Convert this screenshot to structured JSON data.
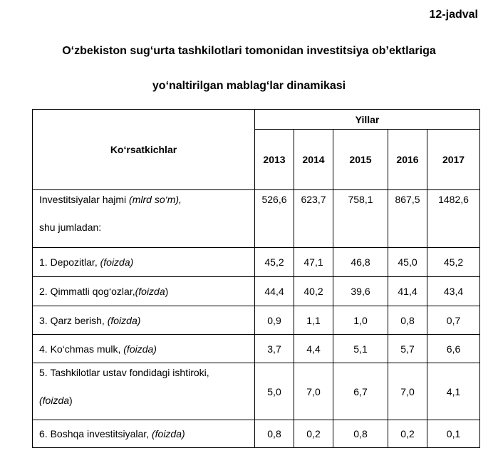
{
  "table_no": "12-jadval",
  "title_line1": "O‘zbekiston sug‘urta tashkilotlari tomonidan investitsiya ob’ektlariga",
  "title_line2": "yo‘naltirilgan mablag‘lar dinamikasi",
  "header": {
    "indicators": "Ko‘rsatkichlar",
    "years_group": "Yillar",
    "years": [
      "2013",
      "2014",
      "2015",
      "2016",
      "2017"
    ]
  },
  "rows": [
    {
      "label": "Investitsiyalar hajmi",
      "unit": "(mlrd so‘m),",
      "sub": "shu jumladan:",
      "values": [
        "526,6",
        "623,7",
        "758,1",
        "867,5",
        "1482,6"
      ]
    },
    {
      "label": "1.  Depozitlar,",
      "unit": "(foizda)",
      "values": [
        "45,2",
        "47,1",
        "46,8",
        "45,0",
        "45,2"
      ]
    },
    {
      "label": "2.  Qimmatli qog‘ozlar,",
      "unit": "(foizda",
      "unit_close": ")",
      "values": [
        "44,4",
        "40,2",
        "39,6",
        "41,4",
        "43,4"
      ]
    },
    {
      "label": "3.  Qarz berish,",
      "unit": "(foizda)",
      "values": [
        "0,9",
        "1,1",
        "1,0",
        "0,8",
        "0,7"
      ]
    },
    {
      "label": "4.  Ko‘chmas mulk,",
      "unit": "(foizda)",
      "values": [
        "3,7",
        "4,4",
        "5,1",
        "5,7",
        "6,6"
      ]
    },
    {
      "label": "5.  Tashkilotlar ustav fondidagi ishtiroki,",
      "unit": "(foizda",
      "unit_close": ")",
      "values": [
        "5,0",
        "7,0",
        "6,7",
        "7,0",
        "4,1"
      ]
    },
    {
      "label": "6.  Boshqa investitsiyalar,",
      "unit": "(foizda)",
      "values": [
        "0,8",
        "0,2",
        "0,8",
        "0,2",
        "0,1"
      ]
    }
  ]
}
